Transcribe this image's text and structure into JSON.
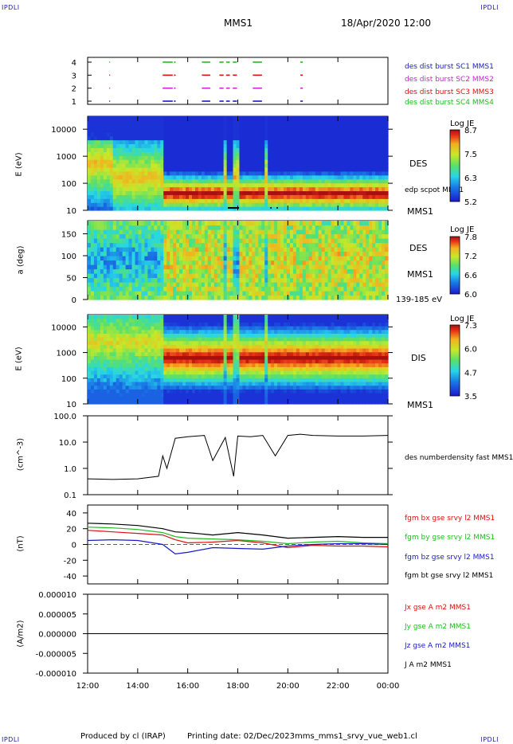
{
  "header": {
    "corner_label": "IPDLI",
    "spacecraft": "MMS1",
    "date_time": "18/Apr/2020 12:00"
  },
  "footer": {
    "produced_by": "Produced by cl (IRAP)",
    "printing_date": "Printing date: 02/Dec/2023",
    "filename": "mms_mms1_srvy_vue_web1.cl"
  },
  "colors": {
    "spacecraft1": "#1a1acc",
    "spacecraft2": "#cc22cc",
    "spacecraft3": "#dd1111",
    "spacecraft4": "#22bb22",
    "black": "#000000"
  },
  "chart_data": [
    {
      "type": "scatter",
      "panel": "burst-availability",
      "yticks": [
        "1",
        "2",
        "3",
        "4"
      ],
      "series": [
        {
          "name": "des dist burst SC1 MMS1",
          "y": 1,
          "intervals": [
            [
              "12:52",
              "12:53"
            ],
            [
              "15:00",
              "15:24"
            ],
            [
              "15:27",
              "15:31"
            ],
            [
              "16:34",
              "16:54"
            ],
            [
              "17:16",
              "17:26"
            ],
            [
              "17:32",
              "17:41"
            ],
            [
              "17:48",
              "17:58"
            ],
            [
              "18:36",
              "18:58"
            ],
            [
              "20:30",
              "20:36"
            ]
          ]
        },
        {
          "name": "des dist burst SC2 MMS2",
          "y": 2,
          "intervals": [
            [
              "12:52",
              "12:53"
            ],
            [
              "15:00",
              "15:24"
            ],
            [
              "15:27",
              "15:31"
            ],
            [
              "16:34",
              "16:54"
            ],
            [
              "17:16",
              "17:26"
            ],
            [
              "17:32",
              "17:41"
            ],
            [
              "17:48",
              "17:58"
            ],
            [
              "18:36",
              "18:58"
            ],
            [
              "20:30",
              "20:36"
            ]
          ]
        },
        {
          "name": "des dist burst SC3 MMS3",
          "y": 3,
          "intervals": [
            [
              "12:52",
              "12:53"
            ],
            [
              "15:00",
              "15:24"
            ],
            [
              "15:27",
              "15:31"
            ],
            [
              "16:34",
              "16:54"
            ],
            [
              "17:16",
              "17:26"
            ],
            [
              "17:32",
              "17:41"
            ],
            [
              "17:48",
              "17:58"
            ],
            [
              "18:36",
              "18:58"
            ],
            [
              "20:30",
              "20:36"
            ]
          ]
        },
        {
          "name": "des dist burst SC4 MMS4",
          "y": 4,
          "intervals": [
            [
              "12:52",
              "12:53"
            ],
            [
              "15:00",
              "15:24"
            ],
            [
              "15:27",
              "15:31"
            ],
            [
              "16:34",
              "16:54"
            ],
            [
              "17:16",
              "17:26"
            ],
            [
              "17:32",
              "17:41"
            ],
            [
              "17:48",
              "17:58"
            ],
            [
              "18:36",
              "18:58"
            ],
            [
              "20:30",
              "20:36"
            ]
          ]
        }
      ]
    },
    {
      "type": "heatmap",
      "panel": "des-energy-spectrogram",
      "ylabel": "E (eV)",
      "yscale": "log",
      "ylim": [
        10,
        30000
      ],
      "yticks": [
        "10",
        "100",
        "1000",
        "10000"
      ],
      "label": "DES",
      "sublabel": "MMS1",
      "overlay": "edp scpot MMS1",
      "colorbar": {
        "title": "Log JE",
        "ticks": [
          "8.7",
          "7.5",
          "6.3",
          "5.2"
        ]
      }
    },
    {
      "type": "heatmap",
      "panel": "des-pitch-angle",
      "ylabel": "a (deg)",
      "ylim": [
        0,
        180
      ],
      "yticks": [
        "0",
        "50",
        "100",
        "150"
      ],
      "label": "DES",
      "sublabel": "MMS1",
      "energy_range": "139-185 eV",
      "colorbar": {
        "title": "Log JE",
        "ticks": [
          "7.8",
          "7.2",
          "6.6",
          "6.0"
        ]
      }
    },
    {
      "type": "heatmap",
      "panel": "dis-energy-spectrogram",
      "ylabel": "E (eV)",
      "yscale": "log",
      "ylim": [
        10,
        30000
      ],
      "yticks": [
        "10",
        "100",
        "1000",
        "10000"
      ],
      "label": "DIS",
      "sublabel": "MMS1",
      "colorbar": {
        "title": "Log JE",
        "ticks": [
          "7.3",
          "6.0",
          "4.7",
          "3.5"
        ]
      }
    },
    {
      "type": "line",
      "panel": "density",
      "ylabel": "(cm^-3)",
      "yscale": "log",
      "ylim": [
        0.1,
        100
      ],
      "yticks": [
        "0.1",
        "1.0",
        "10.0",
        "100.0"
      ],
      "series": [
        {
          "name": "des numberdensity fast MMS1",
          "x": [
            "12:00",
            "13:00",
            "14:00",
            "14:50",
            "15:00",
            "15:10",
            "15:30",
            "16:00",
            "16:40",
            "17:00",
            "17:30",
            "17:50",
            "18:00",
            "18:30",
            "19:00",
            "19:30",
            "20:00",
            "20:30",
            "21:00",
            "22:00",
            "23:00",
            "00:00"
          ],
          "y": [
            0.4,
            0.38,
            0.4,
            0.5,
            3.0,
            1.0,
            14,
            16,
            18,
            2.0,
            15,
            0.5,
            17,
            16,
            18,
            3.0,
            18,
            20,
            18,
            17,
            17,
            18
          ]
        }
      ]
    },
    {
      "type": "line",
      "panel": "magnetic-field",
      "ylabel": "(nT)",
      "ylim": [
        -50,
        50
      ],
      "yticks": [
        "-40",
        "-20",
        "0",
        "20",
        "40"
      ],
      "series": [
        {
          "name": "fgm bx gse srvy l2 MMS1",
          "x": [
            "12:00",
            "13:00",
            "14:00",
            "15:00",
            "15:30",
            "16:00",
            "17:00",
            "18:00",
            "19:00",
            "20:00",
            "21:00",
            "22:00",
            "23:00",
            "00:00"
          ],
          "y": [
            18,
            16,
            14,
            12,
            6,
            2,
            3,
            5,
            2,
            -4,
            -1,
            -2,
            -2,
            -3
          ]
        },
        {
          "name": "fgm by gse srvy l2 MMS1",
          "x": [
            "12:00",
            "13:00",
            "14:00",
            "15:00",
            "15:30",
            "16:00",
            "17:00",
            "18:00",
            "19:00",
            "20:00",
            "21:00",
            "22:00",
            "23:00",
            "00:00"
          ],
          "y": [
            22,
            21,
            19,
            15,
            10,
            8,
            7,
            6,
            4,
            1,
            3,
            4,
            2,
            1
          ]
        },
        {
          "name": "fgm bz gse srvy l2 MMS1",
          "x": [
            "12:00",
            "13:00",
            "14:00",
            "15:00",
            "15:30",
            "16:00",
            "17:00",
            "18:00",
            "19:00",
            "20:00",
            "21:00",
            "22:00",
            "23:00",
            "00:00"
          ],
          "y": [
            5,
            6,
            5,
            0,
            -12,
            -10,
            -4,
            -5,
            -6,
            -2,
            0,
            1,
            1,
            0
          ]
        },
        {
          "name": "fgm bt gse srvy l2 MMS1",
          "x": [
            "12:00",
            "13:00",
            "14:00",
            "15:00",
            "15:30",
            "16:00",
            "17:00",
            "18:00",
            "19:00",
            "20:00",
            "21:00",
            "22:00",
            "23:00",
            "00:00"
          ],
          "y": [
            27,
            26,
            24,
            20,
            16,
            15,
            12,
            15,
            12,
            8,
            9,
            10,
            9,
            9
          ]
        }
      ]
    },
    {
      "type": "line",
      "panel": "current-density",
      "ylabel": "(A/m2)",
      "ylim": [
        -1e-05,
        1e-05
      ],
      "yticks": [
        "-0.000010",
        "-0.000005",
        "0.000000",
        "0.000005",
        "0.000010"
      ],
      "series": [
        {
          "name": "Jx gse A m2 MMS1",
          "x": [
            "12:00",
            "00:00"
          ],
          "y": [
            0,
            0
          ]
        },
        {
          "name": "Jy gse A m2 MMS1",
          "x": [
            "12:00",
            "00:00"
          ],
          "y": [
            0,
            0
          ]
        },
        {
          "name": "Jz gse A m2 MMS1",
          "x": [
            "12:00",
            "00:00"
          ],
          "y": [
            0,
            0
          ]
        },
        {
          "name": "J A m2 MMS1",
          "x": [
            "12:00",
            "00:00"
          ],
          "y": [
            0,
            0
          ]
        }
      ]
    },
    {
      "type": "axis",
      "panel": "time-axis",
      "xlim": [
        "12:00",
        "00:00"
      ],
      "xticks": [
        "12:00",
        "14:00",
        "16:00",
        "18:00",
        "20:00",
        "22:00",
        "00:00"
      ]
    }
  ]
}
